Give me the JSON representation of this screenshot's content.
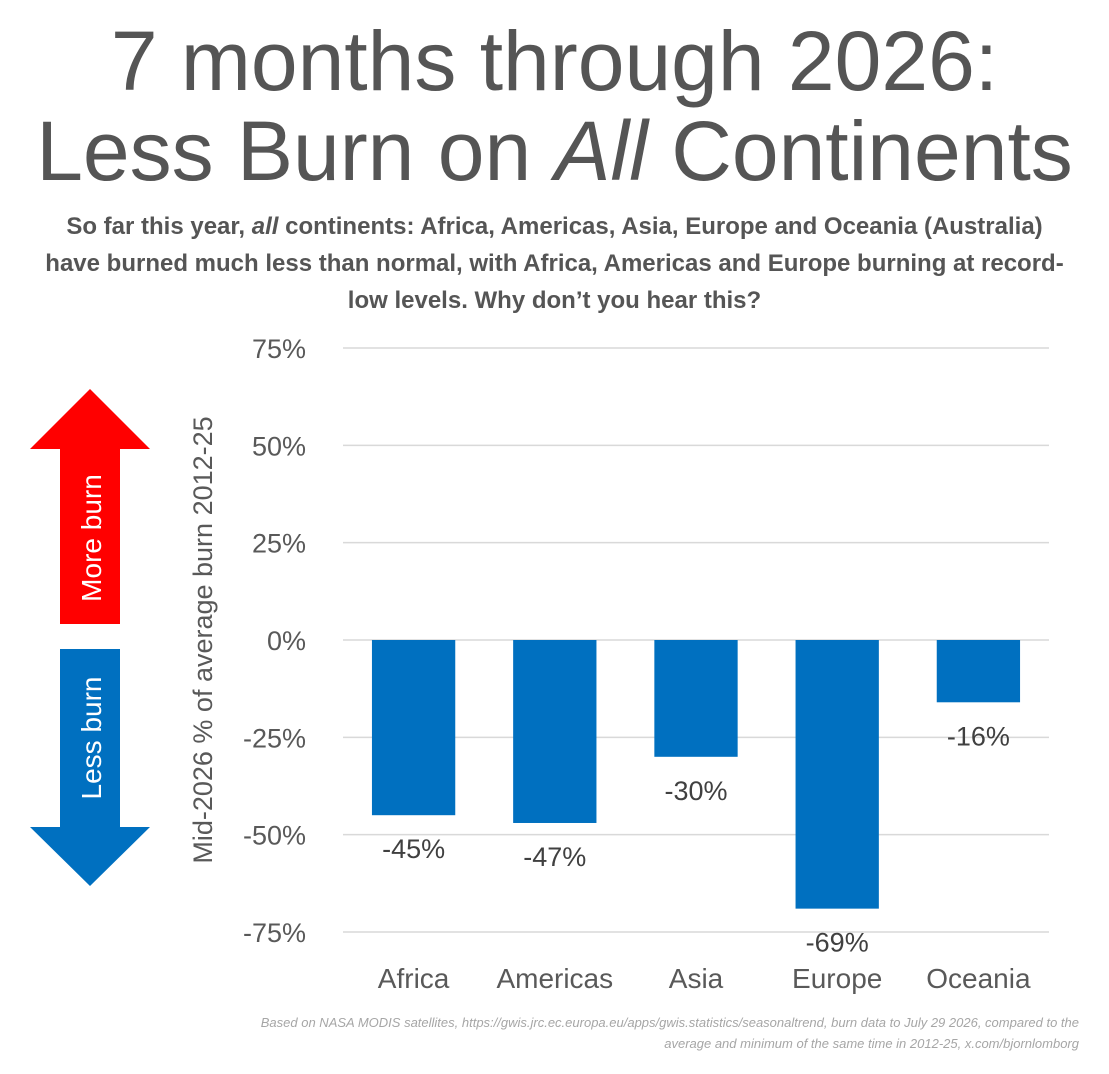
{
  "title": {
    "line1": "7 months through 2026:",
    "line2_prefix": "Less Burn on ",
    "line2_em": "All",
    "line2_suffix": " Continents"
  },
  "subtitle": {
    "prefix": "So far this year, ",
    "em": "all",
    "rest": " continents: Africa, Americas, Asia, Europe and Oceania (Australia) have burned much less than normal, with Africa, Americas and Europe burning at record-low levels. Why don’t you hear this?"
  },
  "arrows": {
    "up_label": "More burn",
    "down_label": "Less burn",
    "up_color": "#ff0000",
    "down_color": "#0070c0"
  },
  "footer": {
    "line1": "Based on NASA MODIS satellites, https://gwis.jrc.ec.europa.eu/apps/gwis.statistics/seasonaltrend, burn data to July 29 2026, compared to the",
    "line2": "average and minimum of the same time in 2012-25, x.com/bjornlomborg"
  },
  "chart_data": {
    "type": "bar",
    "categories": [
      "Africa",
      "Americas",
      "Asia",
      "Europe",
      "Oceania"
    ],
    "values": [
      -45,
      -47,
      -30,
      -69,
      -16
    ],
    "data_labels": [
      "-45%",
      "-47%",
      "-30%",
      "-69%",
      "-16%"
    ],
    "ylabel": "Mid-2026 % of average burn 2012-25",
    "ylim": [
      -75,
      75
    ],
    "yticks": [
      75,
      50,
      25,
      0,
      -25,
      -50,
      -75
    ],
    "ytick_labels": [
      "75%",
      "50%",
      "25%",
      "0%",
      "-25%",
      "-50%",
      "-75%"
    ],
    "grid": true,
    "bar_color": "#0070c0"
  }
}
